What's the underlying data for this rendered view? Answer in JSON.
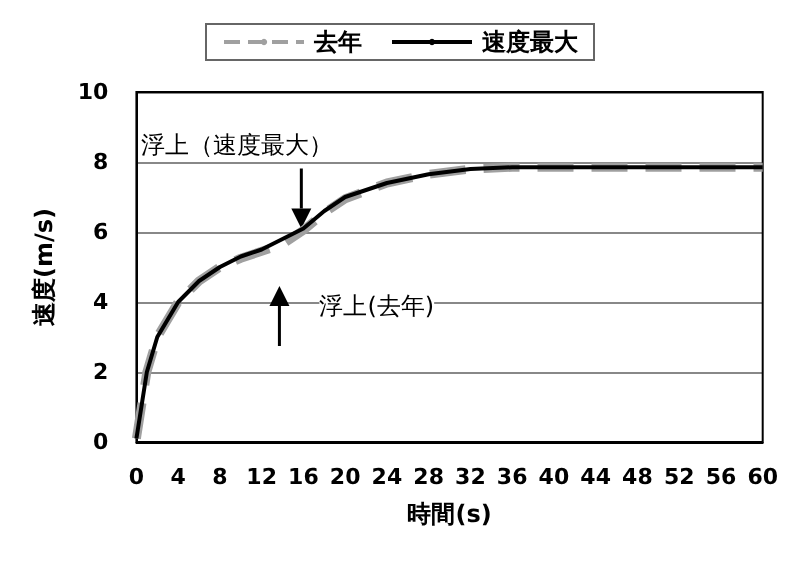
{
  "chart_data": {
    "type": "line",
    "xlabel": "時間(s)",
    "ylabel": "速度(m/s)",
    "xlim": [
      0,
      60
    ],
    "xticks": [
      0,
      4,
      8,
      12,
      16,
      20,
      24,
      28,
      32,
      36,
      40,
      44,
      48,
      52,
      56,
      60
    ],
    "ylim": [
      0,
      10
    ],
    "yticks": [
      0,
      2,
      4,
      6,
      8,
      10
    ],
    "grid": "y",
    "legend": "top",
    "marker": "none",
    "series": [
      {
        "name": "去年",
        "color": "#a0a0a0",
        "line_style": "dashed",
        "x": [
          0,
          1,
          2,
          4,
          6,
          8,
          10,
          12,
          14,
          16,
          18,
          20,
          24,
          28,
          32,
          36,
          40,
          60
        ],
        "values": [
          0.1,
          2,
          3,
          4,
          4.6,
          5,
          5.25,
          5.45,
          5.65,
          6.05,
          6.55,
          6.95,
          7.4,
          7.65,
          7.8,
          7.85,
          7.85,
          7.85
        ]
      },
      {
        "name": "速度最大",
        "color": "#000000",
        "line_style": "solid",
        "x": [
          0,
          1,
          2,
          4,
          6,
          8,
          10,
          12,
          14,
          16,
          18,
          20,
          24,
          28,
          32,
          36,
          40,
          60
        ],
        "values": [
          0.1,
          2,
          3,
          4,
          4.6,
          5,
          5.3,
          5.5,
          5.8,
          6.1,
          6.6,
          7,
          7.4,
          7.65,
          7.8,
          7.85,
          7.85,
          7.85
        ]
      }
    ],
    "annotations": [
      {
        "text": "浮上（速度最大）",
        "x": 15.8,
        "y": 6.1
      },
      {
        "text": "浮上(去年)",
        "x": 13.7,
        "y": 5.6
      }
    ]
  }
}
